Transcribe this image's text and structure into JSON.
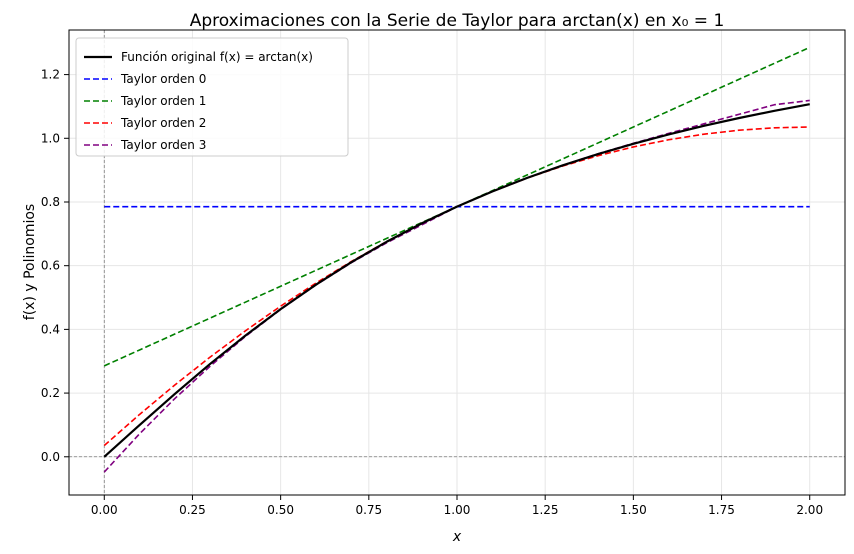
{
  "chart_data": {
    "type": "line",
    "title": "Aproximaciones con la Serie de Taylor para arctan(x) en x₀ = 1",
    "xlabel": "x",
    "ylabel": "f(x) y Polinomios",
    "xlim": [
      -0.1,
      2.1
    ],
    "ylim": [
      -0.12,
      1.34
    ],
    "x_ticks": [
      0.0,
      0.25,
      0.5,
      0.75,
      1.0,
      1.25,
      1.5,
      1.75,
      2.0
    ],
    "x_tick_labels": [
      "0.00",
      "0.25",
      "0.50",
      "0.75",
      "1.00",
      "1.25",
      "1.50",
      "1.75",
      "2.00"
    ],
    "y_ticks": [
      0.0,
      0.2,
      0.4,
      0.6,
      0.8,
      1.0,
      1.2
    ],
    "y_tick_labels": [
      "0.0",
      "0.2",
      "0.4",
      "0.6",
      "0.8",
      "1.0",
      "1.2"
    ],
    "grid": true,
    "legend_position": "top-left",
    "reference_lines": {
      "x": 0,
      "y": 0,
      "color": "#808080"
    },
    "x": [
      0.0,
      0.1,
      0.2,
      0.3,
      0.4,
      0.5,
      0.6,
      0.7,
      0.8,
      0.9,
      1.0,
      1.1,
      1.2,
      1.3,
      1.4,
      1.5,
      1.6,
      1.7,
      1.8,
      1.9,
      2.0
    ],
    "series": [
      {
        "name": "Función original f(x) = arctan(x)",
        "color": "#000000",
        "style": "solid",
        "values": [
          0.0,
          0.0997,
          0.1974,
          0.2915,
          0.3805,
          0.4636,
          0.5404,
          0.6107,
          0.6747,
          0.7328,
          0.7854,
          0.833,
          0.8761,
          0.9151,
          0.9505,
          0.9828,
          1.0122,
          1.0391,
          1.0637,
          1.0863,
          1.1071
        ]
      },
      {
        "name": "Taylor orden 0",
        "color": "#0000ff",
        "style": "dashed",
        "values": [
          0.7854,
          0.7854,
          0.7854,
          0.7854,
          0.7854,
          0.7854,
          0.7854,
          0.7854,
          0.7854,
          0.7854,
          0.7854,
          0.7854,
          0.7854,
          0.7854,
          0.7854,
          0.7854,
          0.7854,
          0.7854,
          0.7854,
          0.7854,
          0.7854
        ]
      },
      {
        "name": "Taylor orden 1",
        "color": "#008000",
        "style": "dashed",
        "values": [
          0.2854,
          0.3354,
          0.3854,
          0.4354,
          0.4854,
          0.5354,
          0.5854,
          0.6354,
          0.6854,
          0.7354,
          0.7854,
          0.8354,
          0.8854,
          0.9354,
          0.9854,
          1.0354,
          1.0854,
          1.1354,
          1.1854,
          1.2354,
          1.2854
        ]
      },
      {
        "name": "Taylor orden 2",
        "color": "#ff0000",
        "style": "dashed",
        "values": [
          0.0354,
          0.1329,
          0.2254,
          0.3129,
          0.3954,
          0.4729,
          0.5454,
          0.6129,
          0.6754,
          0.7329,
          0.7854,
          0.8329,
          0.8754,
          0.9129,
          0.9454,
          0.9729,
          0.9954,
          1.0129,
          1.0254,
          1.0329,
          1.0354
        ]
      },
      {
        "name": "Taylor orden 3",
        "color": "#800080",
        "style": "dashed",
        "values": [
          -0.0479,
          0.0722,
          0.1827,
          0.2843,
          0.3777,
          0.4625,
          0.5394,
          0.6089,
          0.6715,
          0.728,
          0.7854,
          0.833,
          0.8761,
          0.9151,
          0.9515,
          0.9842,
          1.0154,
          1.0454,
          1.0754,
          1.1054,
          1.1187
        ]
      }
    ]
  }
}
